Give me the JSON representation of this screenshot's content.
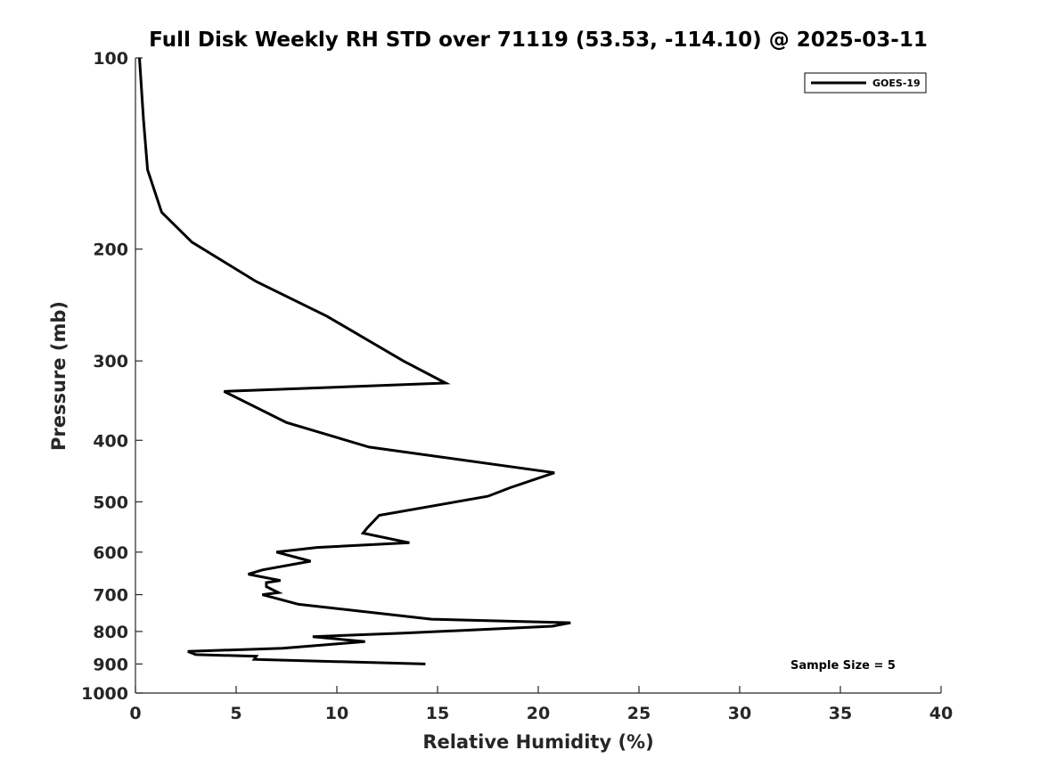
{
  "chart_data": {
    "type": "line",
    "title": "Full Disk Weekly RH STD over 71119 (53.53, -114.10) @ 2025-03-11",
    "xlabel": "Relative Humidity (%)",
    "ylabel": "Pressure (mb)",
    "xlim": [
      0,
      40
    ],
    "ylim": [
      1000,
      100
    ],
    "yscale": "log",
    "y_reversed": true,
    "x_ticks": [
      "0",
      "5",
      "10",
      "15",
      "20",
      "25",
      "30",
      "35",
      "40"
    ],
    "y_ticks": [
      "100",
      "200",
      "300",
      "400",
      "500",
      "600",
      "700",
      "800",
      "900",
      "1000"
    ],
    "grid": false,
    "legend": {
      "position": "top-right",
      "entries": [
        "GOES-19"
      ]
    },
    "annotation": "Sample Size = 5",
    "series": [
      {
        "name": "GOES-19",
        "color": "#000000",
        "points": [
          [
            0.2,
            100
          ],
          [
            0.4,
            125
          ],
          [
            0.6,
            150
          ],
          [
            1.3,
            175
          ],
          [
            2.8,
            195
          ],
          [
            6.0,
            225
          ],
          [
            9.5,
            255
          ],
          [
            13.3,
            300
          ],
          [
            15.4,
            325
          ],
          [
            4.4,
            335
          ],
          [
            7.5,
            375
          ],
          [
            11.6,
            410
          ],
          [
            20.8,
            450
          ],
          [
            18.6,
            475
          ],
          [
            17.5,
            490
          ],
          [
            12.1,
            525
          ],
          [
            11.5,
            550
          ],
          [
            11.3,
            560
          ],
          [
            13.6,
            580
          ],
          [
            9.0,
            590
          ],
          [
            7.0,
            600
          ],
          [
            8.7,
            620
          ],
          [
            6.3,
            640
          ],
          [
            5.6,
            650
          ],
          [
            7.2,
            665
          ],
          [
            6.5,
            670
          ],
          [
            6.5,
            680
          ],
          [
            7.1,
            695
          ],
          [
            6.3,
            700
          ],
          [
            8.1,
            725
          ],
          [
            14.7,
            765
          ],
          [
            21.6,
            775
          ],
          [
            20.7,
            785
          ],
          [
            13.3,
            805
          ],
          [
            8.8,
            815
          ],
          [
            11.4,
            830
          ],
          [
            7.3,
            850
          ],
          [
            2.6,
            860
          ],
          [
            3.0,
            870
          ],
          [
            6.0,
            875
          ],
          [
            5.9,
            885
          ],
          [
            14.4,
            900
          ]
        ]
      }
    ]
  }
}
